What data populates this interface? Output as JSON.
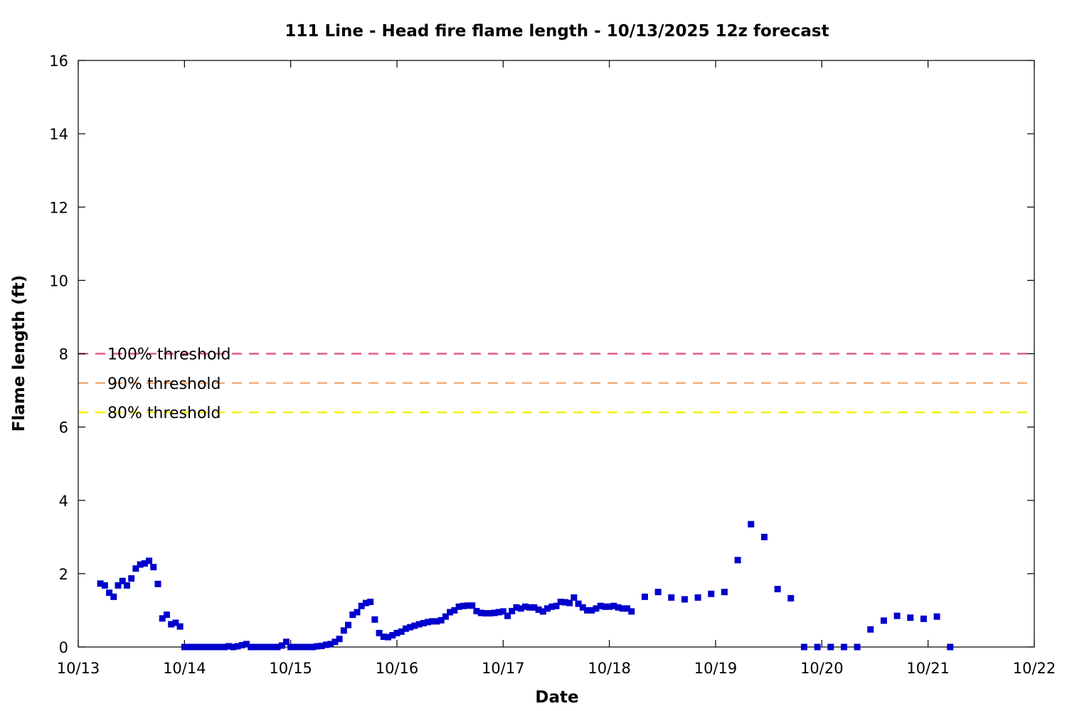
{
  "chart_data": {
    "type": "scatter",
    "title": "111 Line - Head fire flame length - 10/13/2025 12z forecast",
    "xlabel": "Date",
    "ylabel": "Flame length (ft)",
    "xlim": [
      "10/13",
      "10/22"
    ],
    "ylim": [
      0,
      16
    ],
    "x_ticks": [
      "10/13",
      "10/14",
      "10/15",
      "10/16",
      "10/17",
      "10/18",
      "10/19",
      "10/20",
      "10/21",
      "10/22"
    ],
    "y_ticks": [
      0,
      2,
      4,
      6,
      8,
      10,
      12,
      14,
      16
    ],
    "grid": false,
    "series": [
      {
        "color": "#0000cc",
        "marker": "square",
        "x": [
          "10/13 05:00",
          "10/13 06:00",
          "10/13 07:00",
          "10/13 08:00",
          "10/13 09:00",
          "10/13 10:00",
          "10/13 11:00",
          "10/13 12:00",
          "10/13 13:00",
          "10/13 14:00",
          "10/13 15:00",
          "10/13 16:00",
          "10/13 17:00",
          "10/13 18:00",
          "10/13 19:00",
          "10/13 20:00",
          "10/13 21:00",
          "10/13 22:00",
          "10/13 23:00",
          "10/14 00:00",
          "10/14 01:00",
          "10/14 02:00",
          "10/14 03:00",
          "10/14 04:00",
          "10/14 05:00",
          "10/14 06:00",
          "10/14 07:00",
          "10/14 08:00",
          "10/14 09:00",
          "10/14 10:00",
          "10/14 11:00",
          "10/14 12:00",
          "10/14 13:00",
          "10/14 14:00",
          "10/14 15:00",
          "10/14 16:00",
          "10/14 17:00",
          "10/14 18:00",
          "10/14 19:00",
          "10/14 20:00",
          "10/14 21:00",
          "10/14 22:00",
          "10/14 23:00",
          "10/15 00:00",
          "10/15 01:00",
          "10/15 02:00",
          "10/15 03:00",
          "10/15 04:00",
          "10/15 05:00",
          "10/15 06:00",
          "10/15 07:00",
          "10/15 08:00",
          "10/15 09:00",
          "10/15 10:00",
          "10/15 11:00",
          "10/15 12:00",
          "10/15 13:00",
          "10/15 14:00",
          "10/15 15:00",
          "10/15 16:00",
          "10/15 17:00",
          "10/15 18:00",
          "10/15 19:00",
          "10/15 20:00",
          "10/15 21:00",
          "10/15 22:00",
          "10/15 23:00",
          "10/16 00:00",
          "10/16 01:00",
          "10/16 02:00",
          "10/16 03:00",
          "10/16 04:00",
          "10/16 05:00",
          "10/16 06:00",
          "10/16 07:00",
          "10/16 08:00",
          "10/16 09:00",
          "10/16 10:00",
          "10/16 11:00",
          "10/16 12:00",
          "10/16 13:00",
          "10/16 14:00",
          "10/16 15:00",
          "10/16 16:00",
          "10/16 17:00",
          "10/16 18:00",
          "10/16 19:00",
          "10/16 20:00",
          "10/16 21:00",
          "10/16 22:00",
          "10/16 23:00",
          "10/17 00:00",
          "10/17 01:00",
          "10/17 02:00",
          "10/17 03:00",
          "10/17 04:00",
          "10/17 05:00",
          "10/17 06:00",
          "10/17 07:00",
          "10/17 08:00",
          "10/17 09:00",
          "10/17 10:00",
          "10/17 11:00",
          "10/17 12:00",
          "10/17 13:00",
          "10/17 14:00",
          "10/17 15:00",
          "10/17 16:00",
          "10/17 17:00",
          "10/17 18:00",
          "10/17 19:00",
          "10/17 20:00",
          "10/17 21:00",
          "10/17 22:00",
          "10/17 23:00",
          "10/18 00:00",
          "10/18 01:00",
          "10/18 02:00",
          "10/18 03:00",
          "10/18 04:00",
          "10/18 05:00",
          "10/18 08:00",
          "10/18 11:00",
          "10/18 14:00",
          "10/18 17:00",
          "10/18 20:00",
          "10/18 23:00",
          "10/19 02:00",
          "10/19 05:00",
          "10/19 08:00",
          "10/19 11:00",
          "10/19 14:00",
          "10/19 17:00",
          "10/19 20:00",
          "10/19 23:00",
          "10/20 02:00",
          "10/20 05:00",
          "10/20 08:00",
          "10/20 11:00",
          "10/20 14:00",
          "10/20 17:00",
          "10/20 20:00",
          "10/20 23:00",
          "10/21 02:00",
          "10/21 05:00"
        ],
        "y": [
          1.73,
          1.68,
          1.48,
          1.37,
          1.68,
          1.8,
          1.68,
          1.87,
          2.14,
          2.25,
          2.28,
          2.35,
          2.18,
          1.72,
          0.78,
          0.88,
          0.62,
          0.66,
          0.56,
          0.0,
          0.0,
          0.0,
          0.0,
          0.0,
          0.0,
          0.0,
          0.0,
          0.0,
          0.0,
          0.02,
          0.0,
          0.02,
          0.05,
          0.08,
          0.0,
          0.0,
          0.0,
          0.0,
          0.0,
          0.0,
          0.0,
          0.04,
          0.14,
          0.0,
          0.0,
          0.0,
          0.0,
          0.0,
          0.0,
          0.02,
          0.03,
          0.06,
          0.08,
          0.14,
          0.22,
          0.45,
          0.6,
          0.88,
          0.95,
          1.12,
          1.2,
          1.23,
          0.75,
          0.38,
          0.28,
          0.27,
          0.32,
          0.38,
          0.42,
          0.5,
          0.54,
          0.58,
          0.62,
          0.65,
          0.68,
          0.7,
          0.7,
          0.73,
          0.83,
          0.95,
          1.0,
          1.1,
          1.12,
          1.13,
          1.13,
          0.98,
          0.93,
          0.92,
          0.92,
          0.93,
          0.95,
          0.97,
          0.85,
          0.98,
          1.08,
          1.05,
          1.1,
          1.08,
          1.08,
          1.02,
          0.97,
          1.05,
          1.1,
          1.12,
          1.23,
          1.22,
          1.2,
          1.35,
          1.18,
          1.08,
          1.0,
          1.0,
          1.05,
          1.12,
          1.1,
          1.1,
          1.12,
          1.08,
          1.05,
          1.05,
          0.97,
          1.37,
          1.5,
          1.35,
          1.3,
          1.35,
          1.45,
          1.5,
          2.37,
          3.35,
          3.0,
          1.58,
          1.33,
          0.0,
          0.0,
          0.0,
          0.0,
          0.0,
          0.48,
          0.72,
          0.85,
          0.8,
          0.77,
          0.83,
          0.0
        ]
      }
    ],
    "thresholds": [
      {
        "label": "100% threshold",
        "value": 8.0,
        "color": "#e0607e"
      },
      {
        "label": "90% threshold",
        "value": 7.2,
        "color": "#f4b07c"
      },
      {
        "label": "80% threshold",
        "value": 6.4,
        "color": "#f0f000"
      }
    ]
  }
}
